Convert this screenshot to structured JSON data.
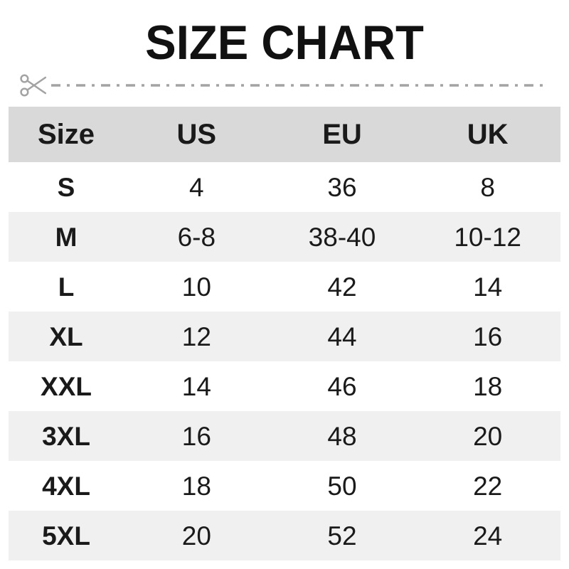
{
  "page": {
    "title": "SIZE CHART"
  },
  "cut_line": {
    "icon": "scissors-icon",
    "color": "#a3a3a3"
  },
  "size_chart": {
    "header_bg": "#d9d9d9",
    "stripe_bg": "#f0f0f0",
    "text_color": "#1a1a1a",
    "columns": [
      "Size",
      "US",
      "EU",
      "UK"
    ],
    "rows": [
      {
        "size": "S",
        "us": "4",
        "eu": "36",
        "uk": "8"
      },
      {
        "size": "M",
        "us": "6-8",
        "eu": "38-40",
        "uk": "10-12"
      },
      {
        "size": "L",
        "us": "10",
        "eu": "42",
        "uk": "14"
      },
      {
        "size": "XL",
        "us": "12",
        "eu": "44",
        "uk": "16"
      },
      {
        "size": "XXL",
        "us": "14",
        "eu": "46",
        "uk": "18"
      },
      {
        "size": "3XL",
        "us": "16",
        "eu": "48",
        "uk": "20"
      },
      {
        "size": "4XL",
        "us": "18",
        "eu": "50",
        "uk": "22"
      },
      {
        "size": "5XL",
        "us": "20",
        "eu": "52",
        "uk": "24"
      }
    ]
  },
  "chart_data": {
    "type": "table",
    "title": "SIZE CHART",
    "columns": [
      "Size",
      "US",
      "EU",
      "UK"
    ],
    "rows": [
      [
        "S",
        "4",
        "36",
        "8"
      ],
      [
        "M",
        "6-8",
        "38-40",
        "10-12"
      ],
      [
        "L",
        "10",
        "42",
        "14"
      ],
      [
        "XL",
        "12",
        "44",
        "16"
      ],
      [
        "XXL",
        "14",
        "46",
        "18"
      ],
      [
        "3XL",
        "16",
        "48",
        "20"
      ],
      [
        "4XL",
        "18",
        "50",
        "22"
      ],
      [
        "5XL",
        "20",
        "52",
        "24"
      ]
    ]
  }
}
